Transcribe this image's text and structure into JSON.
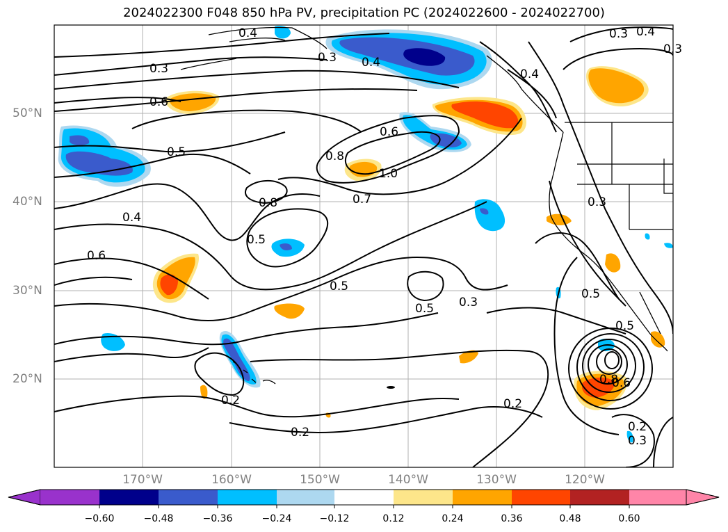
{
  "title": "2024022300 F048 850 hPa PV, precipitation PC (2024022600 - 2024022700)",
  "map": {
    "extent": {
      "lon_min": -180,
      "lon_max": -110,
      "lat_min": 10,
      "lat_max": 60
    },
    "lon_labels": [
      "170°W",
      "160°W",
      "150°W",
      "140°W",
      "130°W",
      "120°W"
    ],
    "lat_labels": [
      "50°N",
      "40°N",
      "30°N",
      "20°N"
    ],
    "contour_labels": [
      "0.4",
      "0.3",
      "0.3",
      "0.4",
      "0.3",
      "0.4",
      "0.4",
      "0.6",
      "0.6",
      "0.5",
      "0.8",
      "1.0",
      "0.8",
      "0.7",
      "0.4",
      "0.5",
      "0.3",
      "0.6",
      "0.5",
      "0.5",
      "0.3",
      "0.5",
      "0.5",
      "0.8",
      "0.6",
      "0.2",
      "0.2",
      "0.2",
      "0.2",
      "0.3",
      "0.3"
    ]
  },
  "colorbar": {
    "ticks": [
      "−0.60",
      "−0.48",
      "−0.36",
      "−0.24",
      "−0.12",
      "0.12",
      "0.24",
      "0.36",
      "0.48",
      "0.60"
    ],
    "colors": [
      "#9932cc",
      "#00008b",
      "#3a5bcc",
      "#00bfff",
      "#add8f0",
      "#ffffff",
      "#fde68a",
      "#ffa500",
      "#ff4500",
      "#b22222",
      "#ff85a8"
    ]
  }
}
